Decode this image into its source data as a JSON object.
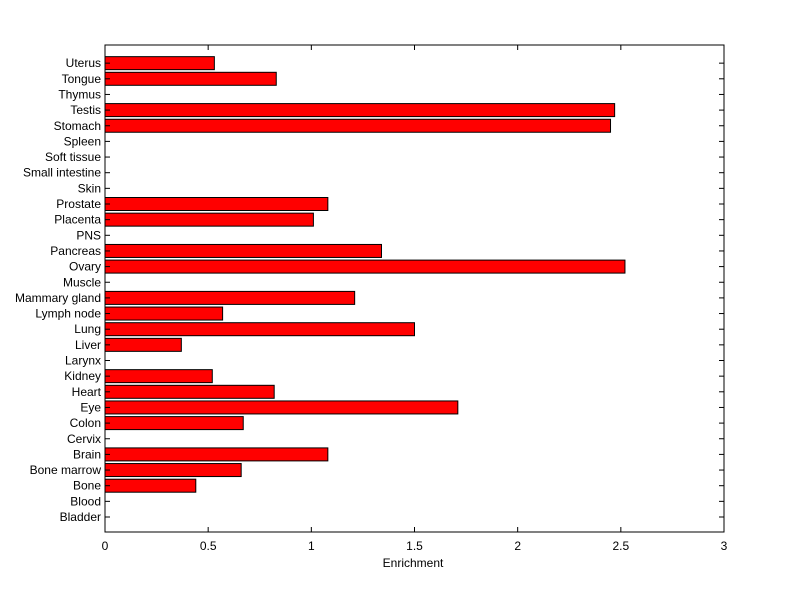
{
  "chart_data": {
    "type": "bar",
    "orientation": "horizontal",
    "xlabel": "Enrichment",
    "ylabel": "",
    "title": "",
    "xlim": [
      0,
      3
    ],
    "xticks": [
      "0",
      "0.5",
      "1",
      "1.5",
      "2",
      "2.5",
      "3"
    ],
    "grid": false,
    "bar_color": "#ff0000",
    "bar_edge_color": "#000000",
    "categories": [
      "Bladder",
      "Blood",
      "Bone",
      "Bone marrow",
      "Brain",
      "Cervix",
      "Colon",
      "Eye",
      "Heart",
      "Kidney",
      "Larynx",
      "Liver",
      "Lung",
      "Lymph node",
      "Mammary gland",
      "Muscle",
      "Ovary",
      "Pancreas",
      "PNS",
      "Placenta",
      "Prostate",
      "Skin",
      "Small intestine",
      "Soft tissue",
      "Spleen",
      "Stomach",
      "Testis",
      "Thymus",
      "Tongue",
      "Uterus"
    ],
    "values": [
      0,
      0,
      0.44,
      0.66,
      1.08,
      0,
      0.67,
      1.71,
      0.82,
      0.52,
      0,
      0.37,
      1.5,
      0.57,
      1.21,
      0,
      2.52,
      1.34,
      0,
      1.01,
      1.08,
      0,
      0,
      0,
      0,
      2.45,
      2.47,
      0,
      0.83,
      0.53
    ]
  }
}
